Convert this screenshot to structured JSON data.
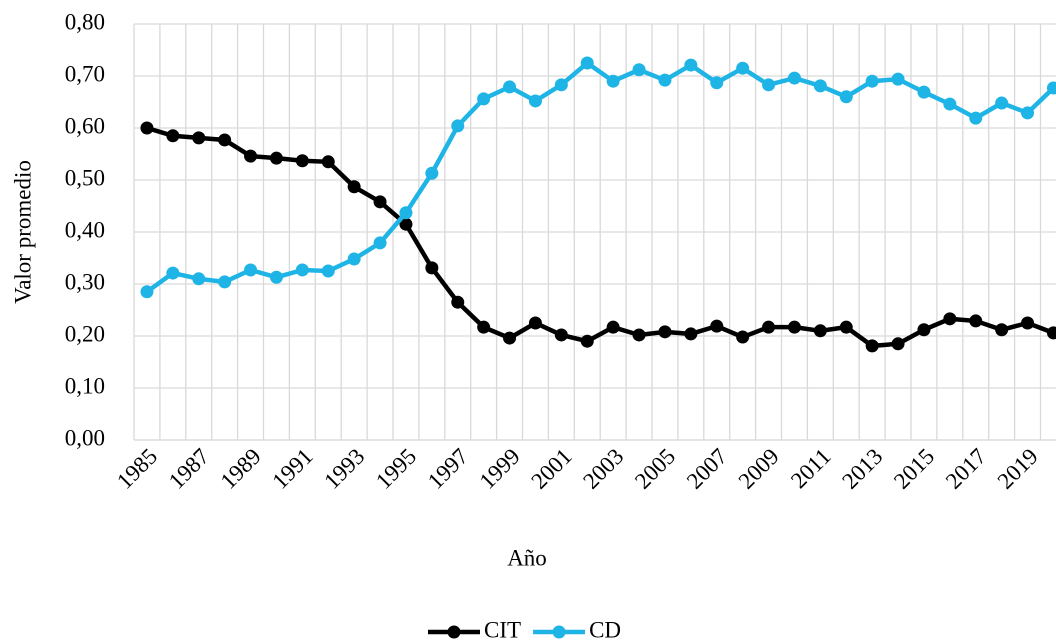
{
  "chart_data": {
    "type": "line",
    "x_label": "Año",
    "y_label": "Valor promedio",
    "categories": [
      "1985",
      null,
      "1987",
      null,
      "1989",
      null,
      "1991",
      null,
      "1993",
      null,
      "1995",
      null,
      "1997",
      null,
      "1999",
      null,
      "2001",
      null,
      "2003",
      null,
      "2005",
      null,
      "2007",
      null,
      "2009",
      null,
      "2011",
      null,
      "2013",
      null,
      "2015",
      null,
      "2017",
      null,
      "2019",
      null
    ],
    "series": [
      {
        "name": "CIT",
        "color": "#000000",
        "values": [
          0.6,
          0.585,
          0.581,
          0.577,
          0.546,
          0.542,
          0.537,
          0.535,
          0.487,
          0.458,
          0.415,
          0.331,
          0.265,
          0.217,
          0.196,
          0.225,
          0.202,
          0.19,
          0.217,
          0.202,
          0.208,
          0.204,
          0.219,
          0.198,
          0.217,
          0.217,
          0.21,
          0.217,
          0.181,
          0.185,
          0.212,
          0.233,
          0.229,
          0.212,
          0.225,
          0.206
        ]
      },
      {
        "name": "CD",
        "color": "#1fb4e6",
        "values": [
          0.285,
          0.321,
          0.31,
          0.304,
          0.327,
          0.313,
          0.327,
          0.325,
          0.348,
          0.379,
          0.437,
          0.513,
          0.604,
          0.656,
          0.679,
          0.652,
          0.683,
          0.725,
          0.69,
          0.712,
          0.692,
          0.721,
          0.687,
          0.715,
          0.683,
          0.696,
          0.681,
          0.66,
          0.69,
          0.694,
          0.669,
          0.646,
          0.619,
          0.648,
          0.629,
          0.677
        ]
      }
    ],
    "ylim": [
      0,
      0.8
    ],
    "yticks": [
      {
        "value": 0,
        "label": "0,00"
      },
      {
        "value": 0.1,
        "label": "0,10"
      },
      {
        "value": 0.2,
        "label": "0,20"
      },
      {
        "value": 0.3,
        "label": "0,30"
      },
      {
        "value": 0.4,
        "label": "0,40"
      },
      {
        "value": 0.5,
        "label": "0,50"
      },
      {
        "value": 0.6,
        "label": "0,60"
      },
      {
        "value": 0.7,
        "label": "0,70"
      },
      {
        "value": 0.8,
        "label": "0,80"
      }
    ],
    "grid": true,
    "legend": "bottom"
  }
}
